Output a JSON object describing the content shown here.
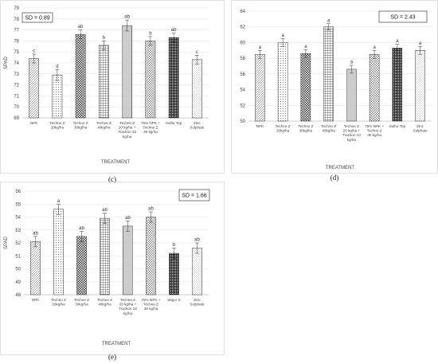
{
  "chart_data": [
    {
      "type": "bar",
      "panel": "(c)",
      "sd_label": "SD = 0.89",
      "ylabel": "SPAD",
      "xlabel": "TREATMENT",
      "ylim": [
        69,
        79
      ],
      "yticks": [
        69,
        70,
        71,
        72,
        73,
        74,
        75,
        76,
        77,
        78,
        79
      ],
      "grid": true,
      "categories": [
        [
          "NPK"
        ],
        [
          "Techno Z",
          "20kg/ha"
        ],
        [
          "Techno Z",
          "30kg/ha"
        ],
        [
          "Techno Z",
          "40kg/ha"
        ],
        [
          "Techno Z",
          "20 kg/ha +",
          "Trackon 10",
          "kg/ha"
        ],
        [
          "75% NPK +",
          "Techno Z",
          "30 kg/ha"
        ],
        [
          "Sulfur Top"
        ],
        [
          "Zinc",
          "Sulphate"
        ]
      ],
      "values": [
        74.4,
        72.9,
        76.6,
        75.6,
        77.4,
        76.0,
        76.3,
        74.3
      ],
      "errors": [
        0.4,
        0.5,
        0.4,
        0.4,
        0.5,
        0.4,
        0.4,
        0.4
      ],
      "letters": [
        "c",
        "d",
        "ab",
        "b",
        "ab",
        "b",
        "ab",
        "c"
      ],
      "patterns": [
        "diagonal",
        "dots",
        "checker",
        "grid",
        "vertical",
        "diamond",
        "dense",
        "sparse-dots"
      ]
    },
    {
      "type": "bar",
      "panel": "(d)",
      "sd_label": "SD = 2.43",
      "ylabel": "",
      "xlabel": "TREATMENT",
      "ylim": [
        50,
        64
      ],
      "yticks": [
        50,
        52,
        54,
        56,
        58,
        60,
        62,
        64
      ],
      "grid": true,
      "categories": [
        [
          "NPK"
        ],
        [
          "Techno Z",
          "20kg/ha"
        ],
        [
          "Techno Z",
          "30kg/ha"
        ],
        [
          "Techno Z",
          "40kg/ha"
        ],
        [
          "Techno Z",
          "20 kg/ha +",
          "Trackon 10",
          "kg/ha"
        ],
        [
          "75% NPK +",
          "Techno Z",
          "30 kg/ha"
        ],
        [
          "Sulfur Top"
        ],
        [
          "Zinc",
          "Sulphate"
        ]
      ],
      "values": [
        58.5,
        60.0,
        58.6,
        62.0,
        56.6,
        58.5,
        59.3,
        59.0
      ],
      "errors": [
        0.5,
        0.5,
        0.5,
        0.4,
        0.5,
        0.5,
        0.5,
        0.5
      ],
      "letters": [
        "a",
        "a",
        "a",
        "a",
        "a",
        "a",
        "a",
        "a"
      ],
      "patterns": [
        "diagonal",
        "dots",
        "checker",
        "grid",
        "vertical",
        "diamond",
        "dense",
        "sparse-dots"
      ]
    },
    {
      "type": "bar",
      "panel": "(e)",
      "sd_label": "SD = 1.66",
      "ylabel": "SPAD",
      "xlabel": "TREATMENT",
      "ylim": [
        48,
        56
      ],
      "yticks": [
        48,
        49,
        50,
        51,
        52,
        53,
        54,
        55,
        56
      ],
      "grid": true,
      "categories": [
        [
          "NPK"
        ],
        [
          "Techno Z",
          "20kg/ha"
        ],
        [
          "Techno Z",
          "30kg/ha"
        ],
        [
          "Techno Z",
          "40kg/ha"
        ],
        [
          "Techno Z",
          "20 kg/ha +",
          "Trackon 10",
          "kg/ha"
        ],
        [
          "75% NPK +",
          "Techno Z",
          "30 kg/ha"
        ],
        [
          "Wigor S"
        ],
        [
          "Zinc",
          "Sulphate"
        ]
      ],
      "values": [
        52.1,
        54.6,
        52.5,
        53.9,
        53.3,
        54.0,
        51.2,
        51.6
      ],
      "errors": [
        0.4,
        0.4,
        0.4,
        0.4,
        0.4,
        0.4,
        0.4,
        0.4
      ],
      "letters": [
        "ab",
        "a",
        "ab",
        "ab",
        "ab",
        "ab",
        "b",
        "ab"
      ],
      "patterns": [
        "diagonal",
        "dots",
        "checker",
        "grid",
        "vertical",
        "diamond",
        "dense",
        "sparse-dots"
      ]
    }
  ]
}
